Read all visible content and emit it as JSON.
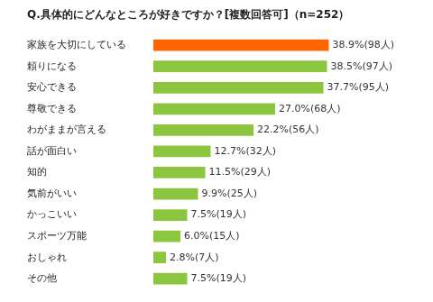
{
  "chart_data": {
    "type": "bar",
    "orientation": "horizontal",
    "title": "Q.具体的にどんなところが好きですか？[複数回答可]（n=252）",
    "categories": [
      "家族を大切にしている",
      "頼りになる",
      "安心できる",
      "尊敬できる",
      "わがままが言える",
      "話が面白い",
      "知的",
      "気前がいい",
      "かっこいい",
      "スポーツ万能",
      "おしゃれ",
      "その他"
    ],
    "values": [
      38.9,
      38.5,
      37.7,
      27.0,
      22.2,
      12.7,
      11.5,
      9.9,
      7.5,
      6.0,
      2.8,
      7.5
    ],
    "value_labels": [
      "38.9%(98人)",
      "38.5%(97人)",
      "37.7%(95人)",
      "27.0%(68人)",
      "22.2%(56人)",
      "12.7%(32人)",
      "11.5%(29人)",
      "9.9%(25人)",
      "7.5%(19人)",
      "6.0%(15人)",
      "2.8%(7人)",
      "7.5%(19人)"
    ],
    "colors": [
      "#ff6600",
      "#8cc63f",
      "#8cc63f",
      "#8cc63f",
      "#8cc63f",
      "#8cc63f",
      "#8cc63f",
      "#8cc63f",
      "#8cc63f",
      "#8cc63f",
      "#8cc63f",
      "#8cc63f"
    ],
    "xlim": [
      0,
      60
    ],
    "data_labels": true,
    "tick_labels": "y",
    "grid": false
  }
}
